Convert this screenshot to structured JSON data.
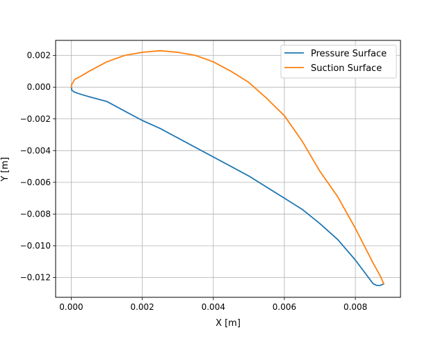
{
  "chart_data": {
    "type": "line",
    "title": "",
    "xlabel": "X [m]",
    "ylabel": "Y [m]",
    "xlim": [
      -0.00044,
      0.00927
    ],
    "ylim": [
      -0.01325,
      0.00295
    ],
    "x_ticks": [
      0.0,
      0.002,
      0.004,
      0.006,
      0.008
    ],
    "x_tick_labels": [
      "0.000",
      "0.002",
      "0.004",
      "0.006",
      "0.008"
    ],
    "y_ticks": [
      0.002,
      0.0,
      -0.002,
      -0.004,
      -0.006,
      -0.008,
      -0.01,
      -0.012
    ],
    "y_tick_labels": [
      "0.002",
      "0.000",
      "−0.002",
      "−0.004",
      "−0.006",
      "−0.008",
      "−0.010",
      "−0.012"
    ],
    "grid": true,
    "legend_position": "top-right",
    "series": [
      {
        "name": "Pressure Surface",
        "color": "#1f77b4",
        "x": [
          0.0,
          2e-05,
          8e-05,
          0.0002,
          0.0005,
          0.001,
          0.0015,
          0.002,
          0.0025,
          0.003,
          0.0035,
          0.004,
          0.0045,
          0.005,
          0.0055,
          0.006,
          0.0065,
          0.007,
          0.0075,
          0.008,
          0.0083,
          0.0085,
          0.0086,
          0.0087,
          0.0088
        ],
        "y": [
          0.0,
          -0.0002,
          -0.0003,
          -0.0004,
          -0.0006,
          -0.0009,
          -0.0015,
          -0.0021,
          -0.0026,
          -0.0032,
          -0.0038,
          -0.0044,
          -0.005,
          -0.0056,
          -0.0063,
          -0.007,
          -0.0077,
          -0.0086,
          -0.0096,
          -0.0109,
          -0.0118,
          -0.0124,
          -0.0125,
          -0.0125,
          -0.0124
        ]
      },
      {
        "name": "Suction Surface",
        "color": "#ff7f0e",
        "x": [
          0.0,
          2e-05,
          5e-05,
          0.0001,
          0.0002,
          0.0005,
          0.001,
          0.0015,
          0.002,
          0.0025,
          0.003,
          0.0035,
          0.004,
          0.0045,
          0.005,
          0.0055,
          0.006,
          0.0065,
          0.007,
          0.0075,
          0.008,
          0.0085,
          0.0087,
          0.0088
        ],
        "y": [
          0.0,
          0.0002,
          0.0003,
          0.0005,
          0.0006,
          0.001,
          0.0016,
          0.002,
          0.0022,
          0.0023,
          0.0022,
          0.002,
          0.0016,
          0.001,
          0.0003,
          -0.0007,
          -0.0018,
          -0.0034,
          -0.0053,
          -0.0069,
          -0.0089,
          -0.0111,
          -0.0119,
          -0.0124
        ]
      }
    ]
  }
}
